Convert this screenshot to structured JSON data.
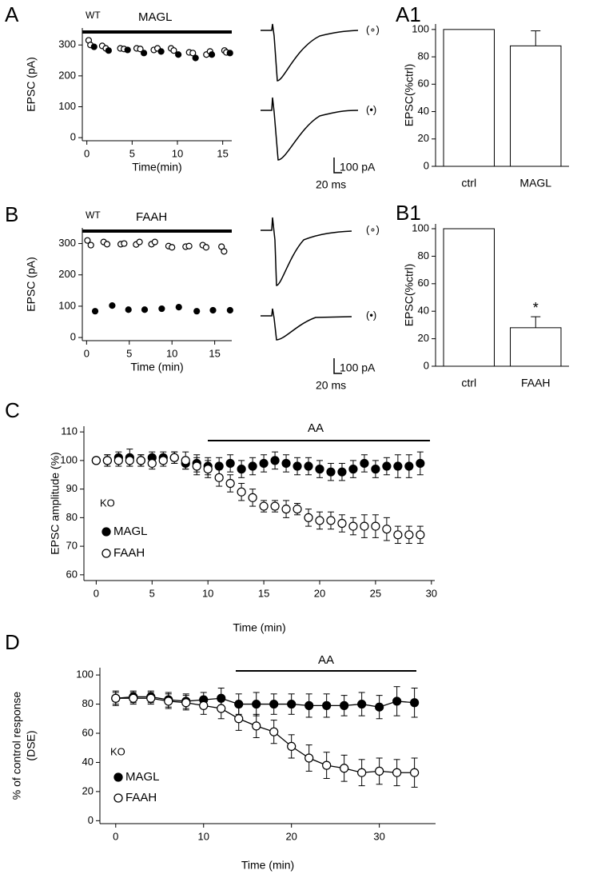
{
  "chart_data": [
    {
      "type": "scatter",
      "panel": "A",
      "annotations": [
        "WT",
        "MAGL"
      ],
      "xlabel": "Time(min)",
      "ylabel": "EPSC (pA)",
      "xlim": [
        -0.5,
        16
      ],
      "ylim": [
        -10,
        355
      ],
      "xticks": [
        0,
        5,
        10,
        15
      ],
      "yticks": [
        0,
        100,
        200,
        300
      ],
      "scale_bar": [
        "100 pA",
        "20 ms"
      ],
      "series": [
        {
          "name": "(∘)",
          "marker": "open",
          "color": "#000000",
          "x": [
            0.2,
            0.4,
            1.7,
            2.1,
            3.7,
            4.1,
            5.5,
            5.9,
            7.4,
            7.8,
            9.3,
            9.6,
            11.3,
            11.7,
            13.2,
            13.6,
            15.2,
            15.4
          ],
          "values": [
            315,
            300,
            297,
            289,
            289,
            287,
            289,
            287,
            284,
            289,
            289,
            282,
            276,
            274,
            269,
            279,
            282,
            276
          ]
        },
        {
          "name": "(•)",
          "marker": "filled",
          "color": "#000000",
          "x": [
            0.8,
            2.4,
            4.5,
            6.3,
            8.2,
            10.1,
            12.0,
            13.8,
            15.8
          ],
          "values": [
            294,
            282,
            284,
            274,
            279,
            269,
            258,
            269,
            274
          ]
        }
      ]
    },
    {
      "type": "bar",
      "panel": "A1",
      "ylabel": "EPSC(%ctrl)",
      "categories": [
        "ctrl",
        "MAGL"
      ],
      "values": [
        100,
        88
      ],
      "errors": [
        null,
        11
      ],
      "color": "#ffffff",
      "ylim": [
        0,
        104
      ],
      "yticks": [
        0,
        20,
        40,
        60,
        80,
        100
      ]
    },
    {
      "type": "scatter",
      "panel": "B",
      "annotations": [
        "WT",
        "FAAH"
      ],
      "xlabel": "Time (min)",
      "ylabel": "EPSC (pA)",
      "xlim": [
        -0.5,
        17
      ],
      "ylim": [
        -10,
        350
      ],
      "xticks": [
        0,
        5,
        10,
        15
      ],
      "yticks": [
        0,
        100,
        200,
        300
      ],
      "scale_bar": [
        "100 pA",
        "20 ms"
      ],
      "series": [
        {
          "name": "(∘)",
          "marker": "open",
          "color": "#000000",
          "x": [
            0.1,
            0.5,
            2.0,
            2.4,
            4.0,
            4.4,
            5.8,
            6.2,
            7.6,
            8.0,
            9.6,
            10.0,
            11.6,
            12.0,
            13.6,
            14.0,
            15.8,
            16.1
          ],
          "values": [
            310,
            295,
            305,
            298,
            298,
            300,
            297,
            305,
            298,
            305,
            292,
            288,
            290,
            292,
            295,
            288,
            290,
            275
          ]
        },
        {
          "name": "(•)",
          "marker": "filled",
          "color": "#000000",
          "x": [
            1.0,
            3.0,
            4.9,
            6.8,
            8.8,
            10.8,
            12.9,
            14.8,
            16.8
          ],
          "values": [
            84,
            102,
            89,
            89,
            92,
            97,
            84,
            87,
            87
          ]
        }
      ]
    },
    {
      "type": "bar",
      "panel": "B1",
      "ylabel": "EPSC(%ctrl)",
      "categories": [
        "ctrl",
        "FAAH"
      ],
      "values": [
        100,
        28
      ],
      "errors": [
        null,
        8
      ],
      "color": "#ffffff",
      "annotations": [
        "*"
      ],
      "ylim": [
        0,
        103.5
      ],
      "yticks": [
        0,
        20,
        40,
        60,
        80,
        100
      ]
    },
    {
      "type": "scatter",
      "panel": "C",
      "annotations": [
        "AA"
      ],
      "legend_title": "KO",
      "xlabel": "Time (min)",
      "ylabel": "EPSC amplitude (%)",
      "xlim": [
        -1.1,
        30.3
      ],
      "ylim": [
        58,
        112
      ],
      "xticks": [
        0,
        5,
        10,
        15,
        20,
        25,
        30
      ],
      "yticks": [
        60,
        70,
        80,
        90,
        100,
        110
      ],
      "x": [
        0,
        1,
        2,
        3,
        4,
        5,
        6,
        7,
        8,
        9,
        10,
        11,
        12,
        13,
        14,
        15,
        16,
        17,
        18,
        19,
        20,
        21,
        22,
        23,
        24,
        25,
        26,
        27,
        28,
        29
      ],
      "series": [
        {
          "name": "MAGL",
          "marker": "filled",
          "color": "#000000",
          "values": [
            100,
            100,
            101,
            101,
            100,
            101,
            101,
            101,
            99,
            99,
            98,
            98,
            99,
            97,
            98,
            99,
            100,
            99,
            98,
            98,
            97,
            96,
            96,
            97,
            99,
            97,
            98,
            98,
            98,
            99
          ],
          "errors": [
            1,
            2,
            2,
            3,
            2,
            2,
            2,
            2,
            2,
            3,
            3,
            3,
            3,
            3,
            3,
            3,
            3,
            3,
            3,
            3,
            3,
            3,
            3,
            3,
            3,
            3,
            3,
            4,
            4,
            4
          ]
        },
        {
          "name": "FAAH",
          "marker": "open",
          "color": "#000000",
          "values": [
            100,
            100,
            100,
            100,
            100,
            99,
            100,
            101,
            100,
            98,
            97,
            94,
            92,
            89,
            87,
            84,
            84,
            83,
            83,
            80,
            79,
            79,
            78,
            77,
            77,
            77,
            76,
            74,
            74,
            74
          ],
          "errors": [
            1,
            2,
            2,
            2,
            2,
            2,
            2,
            2,
            3,
            3,
            3,
            3,
            3,
            3,
            3,
            2,
            2,
            3,
            2,
            3,
            3,
            3,
            3,
            3,
            4,
            4,
            4,
            3,
            3,
            3
          ]
        }
      ]
    },
    {
      "type": "line",
      "panel": "D",
      "annotations": [
        "AA"
      ],
      "legend_title": "KO",
      "xlabel": "Time (min)",
      "ylabel": [
        "% of control response",
        "(DSE)"
      ],
      "xlim": [
        -1.8,
        36.4
      ],
      "ylim": [
        -2,
        105
      ],
      "xticks": [
        0,
        10,
        20,
        30
      ],
      "yticks": [
        0,
        20,
        40,
        60,
        80,
        100
      ],
      "x": [
        0,
        2,
        4,
        6,
        8,
        10,
        12,
        14,
        16,
        18,
        20,
        22,
        24,
        26,
        28,
        30,
        32,
        34
      ],
      "series": [
        {
          "name": "MAGL",
          "marker": "filled",
          "color": "#000000",
          "values": [
            84,
            85,
            85,
            83,
            82,
            83,
            84,
            80,
            80,
            80,
            80,
            79,
            79,
            79,
            80,
            78,
            82,
            81
          ],
          "errors": [
            5,
            4,
            4,
            5,
            5,
            5,
            7,
            7,
            8,
            7,
            7,
            8,
            8,
            7,
            8,
            8,
            10,
            10
          ]
        },
        {
          "name": "FAAH",
          "marker": "open",
          "color": "#000000",
          "values": [
            84,
            84,
            84,
            82,
            81,
            79,
            77,
            70,
            65,
            61,
            51,
            43,
            38,
            36,
            33,
            34,
            33,
            33
          ],
          "errors": [
            4,
            4,
            4,
            5,
            5,
            6,
            7,
            8,
            8,
            8,
            8,
            9,
            9,
            9,
            9,
            9,
            9,
            10
          ]
        }
      ]
    }
  ]
}
